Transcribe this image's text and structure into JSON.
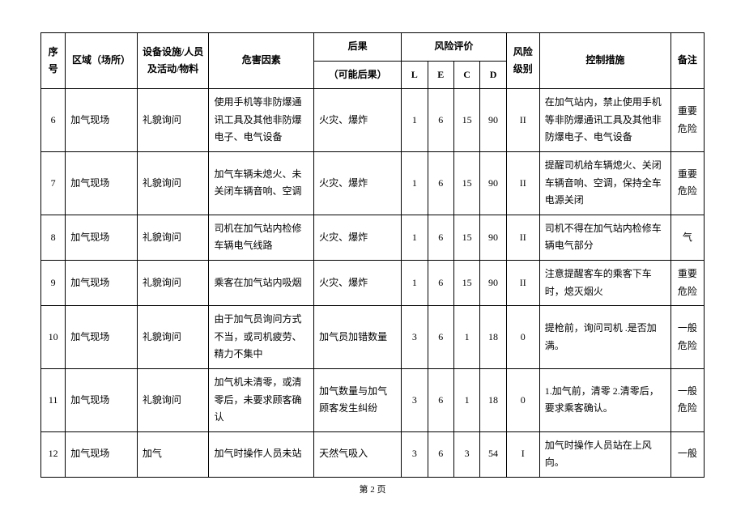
{
  "header": {
    "seq": "序号",
    "area": "区域（场所）",
    "equip": "设备设施/人员及活动/物料",
    "hazard": "危害因素",
    "conseq_top": "后果",
    "conseq_bot": "（可能后果）",
    "risk_eval": "风险评价",
    "L": "L",
    "E": "E",
    "C": "C",
    "D": "D",
    "level": "风险级别",
    "ctrl": "控制措施",
    "remark": "备注"
  },
  "rows": [
    {
      "seq": "6",
      "area": "加气现场",
      "equip": "礼貌询问",
      "hazard": "使用手机等非防爆通讯工具及其他非防爆电子、电气设备",
      "conseq": "火灾、爆炸",
      "L": "1",
      "E": "6",
      "C": "15",
      "D": "90",
      "level": "II",
      "ctrl": "在加气站内，禁止使用手机等非防爆通讯工具及其他非防爆电子、电气设备",
      "remark": "重要危险"
    },
    {
      "seq": "7",
      "area": "加气现场",
      "equip": "礼貌询问",
      "hazard": "加气车辆未熄火、未关闭车辆音响、空调",
      "conseq": "火灾、爆炸",
      "L": "1",
      "E": "6",
      "C": "15",
      "D": "90",
      "level": "II",
      "ctrl": "提醒司机给车辆熄火、关闭车辆音响、空调，保持全车电源关闭",
      "remark": "重要危险"
    },
    {
      "seq": "8",
      "area": "加气现场",
      "equip": "礼貌询问",
      "hazard": "司机在加气站内检修车辆电气线路",
      "conseq": "火灾、爆炸",
      "L": "1",
      "E": "6",
      "C": "15",
      "D": "90",
      "level": "II",
      "ctrl": "司机不得在加气站内检修车辆电气部分",
      "remark": "气"
    },
    {
      "seq": "9",
      "area": "加气现场",
      "equip": "礼貌询问",
      "hazard": "乘客在加气站内吸烟",
      "conseq": "火灾、爆炸",
      "L": "1",
      "E": "6",
      "C": "15",
      "D": "90",
      "level": "II",
      "ctrl": "注意提醒客车的乘客下车时，熄灭烟火",
      "remark": "重要危险"
    },
    {
      "seq": "10",
      "area": "加气现场",
      "equip": "礼貌询问",
      "hazard": "由于加气员询问方式不当，或司机疲劳、精力不集中",
      "conseq": "加气员加错数量",
      "L": "3",
      "E": "6",
      "C": "1",
      "D": "18",
      "level": "0",
      "ctrl": "提枪前，询问司机 .是否加满。",
      "remark": "一般危险"
    },
    {
      "seq": "11",
      "area": "加气现场",
      "equip": "礼貌询问",
      "hazard": "加气机未清零，或清零后，未要求顾客确认",
      "conseq": "加气数量与加气顾客发生纠纷",
      "L": "3",
      "E": "6",
      "C": "1",
      "D": "18",
      "level": "0",
      "ctrl": "1.加气前，清零 2.清零后，要求乘客确认。",
      "remark": "一般危险"
    },
    {
      "seq": "12",
      "area": "加气现场",
      "equip": "加气",
      "hazard": "加气时操作人员未站",
      "conseq": "天然气吸入",
      "L": "3",
      "E": "6",
      "C": "3",
      "D": "54",
      "level": "I",
      "ctrl": "加气时操作人员站在上风向。",
      "remark": "一般"
    }
  ],
  "footer": "第 2 页"
}
